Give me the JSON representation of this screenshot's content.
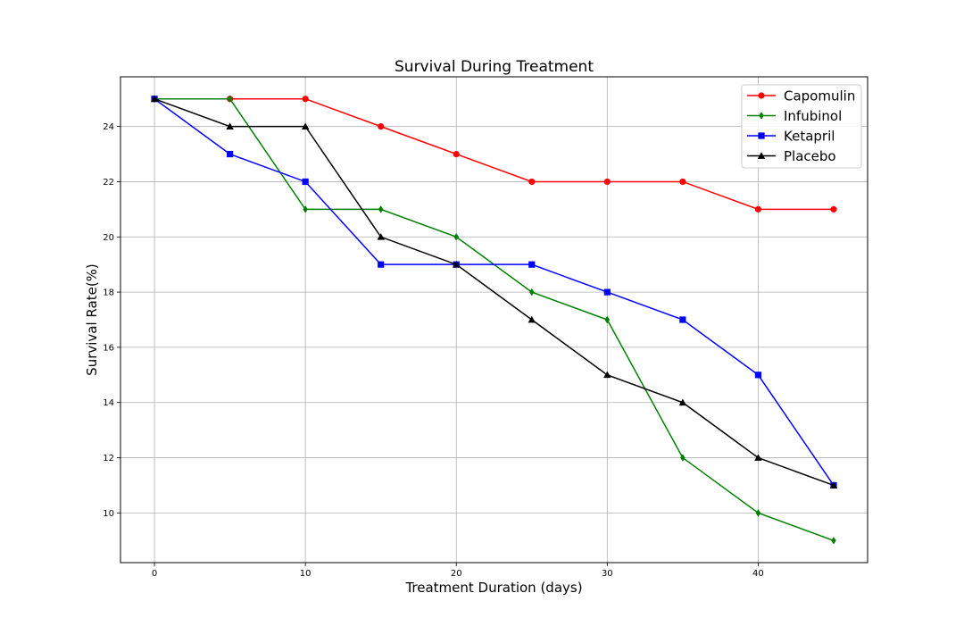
{
  "chart_data": {
    "type": "line",
    "title": "Survival During Treatment",
    "xlabel": "Treatment Duration (days)",
    "ylabel": "Survival Rate(%)",
    "x": [
      0,
      5,
      10,
      15,
      20,
      25,
      30,
      35,
      40,
      45
    ],
    "xlim": [
      -2.25,
      47.25
    ],
    "ylim": [
      8.2,
      25.8
    ],
    "xticks": [
      0,
      10,
      20,
      30,
      40
    ],
    "yticks": [
      10,
      12,
      14,
      16,
      18,
      20,
      22,
      24
    ],
    "grid": true,
    "legend_position": "top-right",
    "series": [
      {
        "name": "Capomulin",
        "color": "#ff0000",
        "marker": "circle",
        "values": [
          25,
          25,
          25,
          24,
          23,
          22,
          22,
          22,
          21,
          21
        ]
      },
      {
        "name": "Infubinol",
        "color": "#008000",
        "marker": "diamond",
        "values": [
          25,
          25,
          21,
          21,
          20,
          18,
          17,
          12,
          10,
          9
        ]
      },
      {
        "name": "Ketapril",
        "color": "#0000ff",
        "marker": "square",
        "values": [
          25,
          23,
          22,
          19,
          19,
          19,
          18,
          17,
          15,
          11
        ]
      },
      {
        "name": "Placebo",
        "color": "#000000",
        "marker": "triangle",
        "values": [
          25,
          24,
          24,
          20,
          19,
          17,
          15,
          14,
          12,
          11
        ]
      }
    ]
  }
}
